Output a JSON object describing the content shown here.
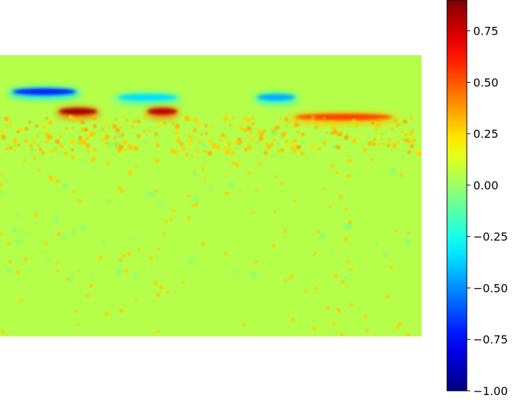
{
  "chart_data": {
    "type": "heatmap",
    "title": "",
    "xlabel": "",
    "ylabel": "",
    "axes_visible": false,
    "colormap": "jet",
    "background_value": 0.05,
    "colorbar": {
      "vmin": -1.0,
      "vmax": 0.9,
      "ticks": [
        0.75,
        0.5,
        0.25,
        0.0,
        -0.25,
        -0.5,
        -0.75,
        -1.0
      ],
      "tick_labels": [
        "0.75",
        "0.50",
        "0.25",
        "0.00",
        "−0.25",
        "−0.50",
        "−0.75",
        "−1.00"
      ],
      "placement": "right"
    },
    "features": [
      {
        "kind": "streak",
        "value": -0.72,
        "x": [
          0.03,
          0.18
        ],
        "y": 0.13
      },
      {
        "kind": "streak",
        "value": -0.35,
        "x": [
          0.28,
          0.42
        ],
        "y": 0.15
      },
      {
        "kind": "streak",
        "value": -0.45,
        "x": [
          0.61,
          0.7
        ],
        "y": 0.15
      },
      {
        "kind": "streak",
        "value": 0.85,
        "x": [
          0.14,
          0.23
        ],
        "y": 0.2
      },
      {
        "kind": "streak",
        "value": 0.8,
        "x": [
          0.35,
          0.42
        ],
        "y": 0.2
      },
      {
        "kind": "streak",
        "value": 0.55,
        "x": [
          0.7,
          0.93
        ],
        "y": 0.22
      },
      {
        "kind": "band",
        "value": 0.3,
        "y": [
          0.22,
          0.35
        ]
      },
      {
        "kind": "scatter",
        "value": 0.28,
        "y": [
          0.3,
          1.0
        ]
      }
    ]
  }
}
